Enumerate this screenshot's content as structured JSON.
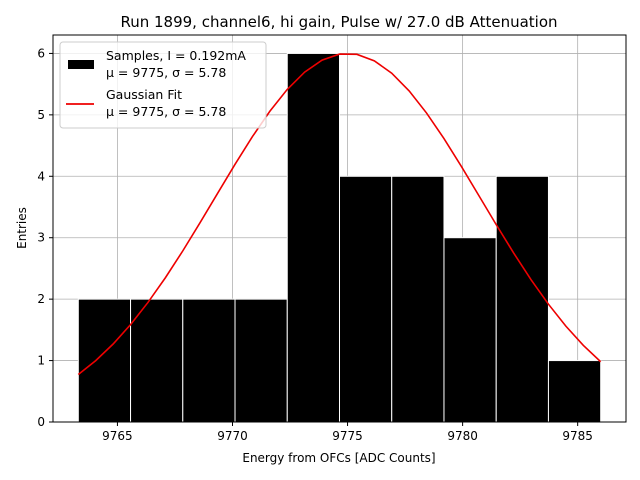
{
  "chart_data": {
    "type": "bar",
    "title": "Run 1899, channel6, hi gain, Pulse w/ 27.0 dB Attenuation",
    "xlabel": "Energy from OFCs [ADC Counts]",
    "ylabel": "Entries",
    "xlim": [
      9762.2,
      9787.1
    ],
    "ylim": [
      0,
      6.3
    ],
    "xticks": [
      9765,
      9770,
      9775,
      9780,
      9785
    ],
    "yticks": [
      0,
      1,
      2,
      3,
      4,
      5,
      6
    ],
    "grid": true,
    "legend_position": "top-left",
    "histogram": {
      "name": "Samples, I = 0.192mA",
      "stats": "μ = 9775, σ = 5.78",
      "color": "#000000",
      "edge_color": "#ffffff",
      "bin_edges": [
        9763.3,
        9765.57,
        9767.84,
        9770.11,
        9772.38,
        9774.65,
        9776.92,
        9779.19,
        9781.46,
        9783.73,
        9786.0
      ],
      "counts": [
        2,
        2,
        2,
        2,
        6,
        4,
        4,
        3,
        4,
        1
      ]
    },
    "fit": {
      "name": "Gaussian Fit",
      "stats": "μ = 9775, σ = 5.78",
      "color": "#ee0000",
      "mean": 9775,
      "sigma": 5.78,
      "amplitude": 6,
      "x_range": [
        9763.3,
        9786.0
      ]
    }
  }
}
